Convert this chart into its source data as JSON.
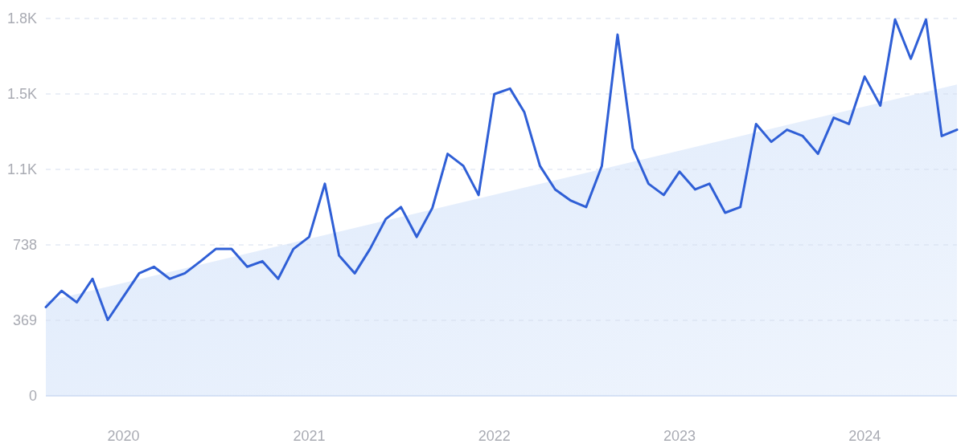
{
  "chart_data": {
    "type": "line",
    "x": [
      "2019-08",
      "2019-09",
      "2019-10",
      "2019-11",
      "2019-12",
      "2020-01",
      "2020-02",
      "2020-03",
      "2020-04",
      "2020-05",
      "2020-06",
      "2020-07",
      "2020-08",
      "2020-09",
      "2020-10",
      "2020-11",
      "2020-12",
      "2021-01",
      "2021-02",
      "2021-03",
      "2021-04",
      "2021-05",
      "2021-06",
      "2021-07",
      "2021-08",
      "2021-09",
      "2021-10",
      "2021-11",
      "2021-12",
      "2022-01",
      "2022-02",
      "2022-03",
      "2022-04",
      "2022-05",
      "2022-06",
      "2022-07",
      "2022-08",
      "2022-09",
      "2022-10",
      "2022-11",
      "2022-12",
      "2023-01",
      "2023-02",
      "2023-03",
      "2023-04",
      "2023-05",
      "2023-06",
      "2023-07",
      "2023-08",
      "2023-09",
      "2023-10",
      "2023-11",
      "2023-12",
      "2024-01",
      "2024-02",
      "2024-03",
      "2024-04",
      "2024-05",
      "2024-06",
      "2024-07"
    ],
    "series": [
      {
        "type": "area",
        "color": "#dde9fb",
        "x": [
          "2019-08",
          "2024-07"
        ],
        "values": [
          461,
          1522
        ]
      },
      {
        "color": "#2f5fd6",
        "values": [
          434,
          513,
          457,
          572,
          371,
          485,
          599,
          631,
          572,
          599,
          658,
          718,
          718,
          631,
          658,
          572,
          718,
          777,
          1037,
          686,
          599,
          718,
          864,
          923,
          777,
          919,
          1183,
          1124,
          982,
          1475,
          1502,
          1388,
          1124,
          1009,
          954,
          923,
          1124,
          1766,
          1211,
          1037,
          982,
          1096,
          1009,
          1037,
          895,
          923,
          1329,
          1242,
          1301,
          1270,
          1183,
          1360,
          1329,
          1561,
          1419,
          1840,
          1648,
          1840,
          1270,
          1301
        ]
      }
    ],
    "xlim": [
      "2019-08",
      "2024-07"
    ],
    "xticks": [
      "2020",
      "2021",
      "2022",
      "2023",
      "2024"
    ],
    "ylim": [
      0,
      1845
    ],
    "yticks": [
      0,
      369,
      738,
      {
        "value": 1107,
        "label": "1.1K"
      },
      {
        "value": 1476,
        "label": "1.5K"
      },
      {
        "value": 1845,
        "label": "1.8K"
      }
    ],
    "grid": "y",
    "marker": "none",
    "line_style": "solid"
  }
}
